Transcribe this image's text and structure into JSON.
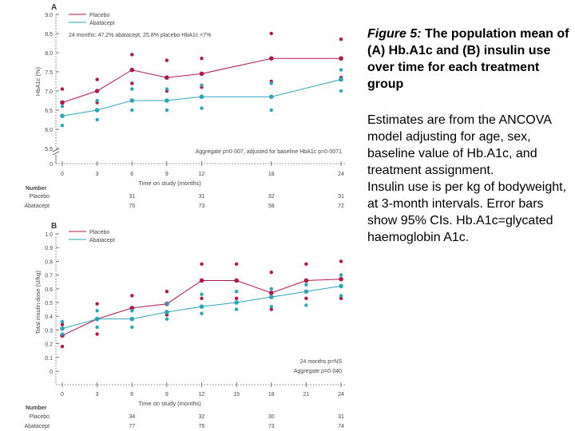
{
  "caption": {
    "figure_label": "Figure 5:",
    "title": "The population mean of (A) Hb.A1c and (B) insulin use over time for each treatment group",
    "paragraph1": "Estimates are from the ANCOVA model adjusting for age, sex, baseline value of Hb.A1c, and treatment assignment.",
    "paragraph2": "Insulin use is per kg of bodyweight, at 3-month intervals. Error bars show 95% CIs. Hb.A1c=glycated haemoglobin A1c."
  },
  "colors": {
    "placebo": "#b0174a",
    "abatacept": "#2aa6b8",
    "axis": "#555555",
    "text": "#444444"
  },
  "chart_data": [
    {
      "panel": "A",
      "type": "line",
      "ylabel": "HbA1c (%)",
      "xlabel": "Time on study (months)",
      "ylim": [
        5.5,
        9.0
      ],
      "yticks": [
        "5.5",
        "6.0",
        "6.5",
        "7.0",
        "7.5",
        "8.0",
        "8.5",
        "9.0"
      ],
      "xticks": [
        "0",
        "3",
        "6",
        "9",
        "12",
        "18",
        "24"
      ],
      "legend": [
        "Placebo",
        "Abatacept"
      ],
      "annotation_top": "24 months: 47.2% abatacept, 25.8% placebo HbA1c <7%",
      "annotation_bottom": "Aggregate p=0·007, adjusted for baseline HbA1c p=0·0071",
      "series": [
        {
          "name": "Placebo",
          "x": [
            0,
            3,
            6,
            9,
            12,
            18,
            24
          ],
          "y": [
            6.7,
            7.0,
            7.55,
            7.35,
            7.45,
            7.85,
            7.85
          ],
          "lower": [
            6.35,
            6.7,
            7.2,
            7.0,
            7.1,
            7.25,
            7.35
          ],
          "upper": [
            7.05,
            7.3,
            7.95,
            7.8,
            7.85,
            8.5,
            8.35
          ]
        },
        {
          "name": "Abatacept",
          "x": [
            0,
            3,
            6,
            9,
            12,
            18,
            24
          ],
          "y": [
            6.35,
            6.5,
            6.75,
            6.75,
            6.85,
            6.85,
            7.3
          ],
          "lower": [
            6.1,
            6.25,
            6.5,
            6.5,
            6.55,
            6.5,
            7.0
          ],
          "upper": [
            6.6,
            6.75,
            7.05,
            7.05,
            7.15,
            7.2,
            7.55
          ]
        }
      ],
      "number_at_risk": {
        "header": "Number",
        "rows": [
          {
            "label": "Placebo",
            "values": [
              "",
              "",
              "31",
              "",
              "31",
              "32",
              "31"
            ]
          },
          {
            "label": "Abatacept",
            "values": [
              "",
              "",
              "75",
              "",
              "73",
              "58",
              "72"
            ]
          }
        ]
      }
    },
    {
      "panel": "B",
      "type": "line",
      "ylabel": "Total insulin dose (U/kg)",
      "xlabel": "Time on study (months)",
      "ylim": [
        0,
        1.0
      ],
      "yticks": [
        "0",
        "0.1",
        "0.2",
        "0.3",
        "0.4",
        "0.5",
        "0.6",
        "0.7",
        "0.8",
        "0.9",
        "1.0"
      ],
      "xticks": [
        "0",
        "3",
        "6",
        "9",
        "12",
        "15",
        "18",
        "21",
        "24"
      ],
      "legend": [
        "Placebo",
        "Abatacept"
      ],
      "annotation_top": "24 months p=NS",
      "annotation_bottom": "Aggregate p=0·040",
      "series": [
        {
          "name": "Placebo",
          "x": [
            0,
            3,
            6,
            9,
            12,
            15,
            18,
            21,
            24
          ],
          "y": [
            0.26,
            0.38,
            0.46,
            0.49,
            0.66,
            0.66,
            0.57,
            0.66,
            0.67
          ],
          "lower": [
            0.18,
            0.27,
            0.38,
            0.41,
            0.53,
            0.53,
            0.45,
            0.53,
            0.53
          ],
          "upper": [
            0.34,
            0.49,
            0.55,
            0.58,
            0.78,
            0.78,
            0.72,
            0.78,
            0.8
          ]
        },
        {
          "name": "Abatacept",
          "x": [
            0,
            3,
            6,
            9,
            12,
            15,
            18,
            21,
            24
          ],
          "y": [
            0.31,
            0.38,
            0.38,
            0.43,
            0.47,
            0.5,
            0.54,
            0.58,
            0.62
          ],
          "lower": [
            0.27,
            0.32,
            0.32,
            0.38,
            0.42,
            0.45,
            0.47,
            0.48,
            0.55
          ],
          "upper": [
            0.36,
            0.44,
            0.44,
            0.49,
            0.56,
            0.58,
            0.6,
            0.63,
            0.7
          ]
        }
      ],
      "number_at_risk": {
        "header": "Number",
        "rows": [
          {
            "label": "Placebo",
            "values": [
              "",
              "",
              "34",
              "",
              "32",
              "",
              "30",
              "",
              "31"
            ]
          },
          {
            "label": "Abatacept",
            "values": [
              "",
              "",
              "77",
              "",
              "75",
              "",
              "73",
              "",
              "74"
            ]
          }
        ]
      }
    }
  ]
}
